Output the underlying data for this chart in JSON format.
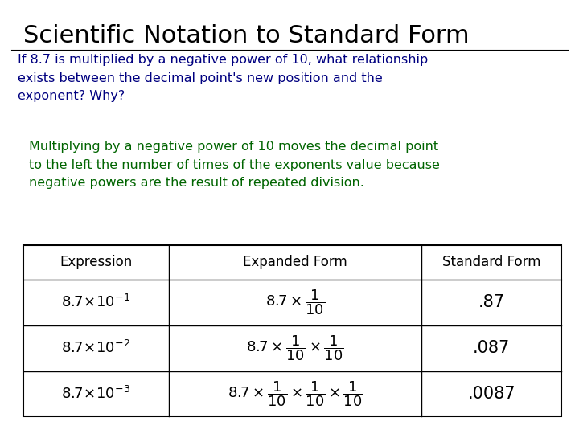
{
  "title": "Scientific Notation to Standard Form",
  "title_color": "#000000",
  "title_fontsize": 22,
  "title_bold": false,
  "question_text": "If 8.7 is multiplied by a negative power of 10, what relationship\nexists between the decimal point's new position and the\nexponent? Why?",
  "question_color": "#000080",
  "question_fontsize": 11.5,
  "answer_text": "Multiplying by a negative power of 10 moves the decimal point\nto the left the number of times of the exponents value because\nnegative powers are the result of repeated division.",
  "answer_color": "#006400",
  "answer_fontsize": 11.5,
  "table_headers": [
    "Expression",
    "Expanded Form",
    "Standard Form"
  ],
  "table_col1": [
    "$8.7\\!\\times\\!10^{-1}$",
    "$8.7\\!\\times\\!10^{-2}$",
    "$8.7\\!\\times\\!10^{-3}$"
  ],
  "table_col2": [
    "$8.7\\times\\dfrac{1}{10}$",
    "$8.7\\times\\dfrac{1}{10}\\times\\dfrac{1}{10}$",
    "$8.7\\times\\dfrac{1}{10}\\times\\dfrac{1}{10}\\times\\dfrac{1}{10}$"
  ],
  "table_col3": [
    ".87",
    ".087",
    ".0087"
  ],
  "background_color": "#ffffff",
  "table_header_fontsize": 12,
  "table_data_fontsize": 13,
  "table_std_fontsize": 15
}
